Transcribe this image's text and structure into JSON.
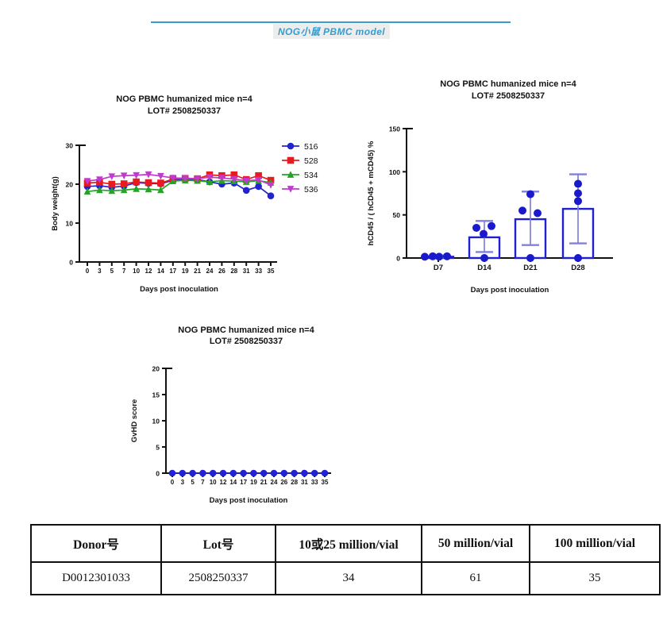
{
  "header": {
    "title": "NOG小鼠  PBMC model",
    "accent_color": "#3a9bca"
  },
  "chart_data": [
    {
      "id": "bodyweight",
      "type": "line",
      "title": "NOG PBMC humanized mice n=4",
      "subtitle": "LOT# 2508250337",
      "xlabel": "Days post inoculation",
      "ylabel": "Body weight(g)",
      "x_ticks": [
        "0",
        "3",
        "5",
        "7",
        "10",
        "12",
        "14",
        "17",
        "19",
        "21",
        "24",
        "26",
        "28",
        "31",
        "33",
        "35"
      ],
      "y_ticks": [
        0,
        10,
        20,
        30
      ],
      "ylim": [
        0,
        30
      ],
      "grid": false,
      "legend_position": "right",
      "series": [
        {
          "name": "516",
          "color": "#2222cf",
          "marker": "circle",
          "values": [
            19.4,
            19.6,
            19.2,
            19.5,
            20.4,
            20.2,
            20.1,
            21.0,
            21.3,
            21.2,
            20.6,
            20.0,
            20.3,
            18.4,
            19.4,
            17.0
          ]
        },
        {
          "name": "528",
          "color": "#e81a1f",
          "marker": "square",
          "values": [
            20.3,
            20.5,
            20.0,
            20.1,
            20.6,
            20.4,
            20.3,
            21.3,
            21.5,
            21.4,
            22.4,
            22.2,
            22.4,
            21.2,
            22.2,
            21.0
          ]
        },
        {
          "name": "534",
          "color": "#24a324",
          "marker": "triangle-up",
          "values": [
            18.1,
            18.5,
            18.3,
            18.5,
            18.8,
            18.7,
            18.5,
            20.8,
            21.0,
            20.9,
            20.6,
            20.9,
            20.8,
            20.6,
            20.9,
            20.4
          ]
        },
        {
          "name": "536",
          "color": "#bf3bce",
          "marker": "triangle-down",
          "values": [
            20.8,
            21.2,
            22.0,
            22.2,
            22.3,
            22.5,
            22.1,
            21.6,
            21.5,
            21.4,
            21.8,
            21.6,
            21.3,
            20.9,
            21.1,
            19.8
          ]
        }
      ]
    },
    {
      "id": "engraftment",
      "type": "bar",
      "title": "NOG PBMC humanized mice n=4",
      "subtitle": "LOT# 2508250337",
      "xlabel": "Days post inoculation",
      "ylabel": "hCD45 / ( hCD45 + mCD45) %",
      "categories": [
        "D7",
        "D14",
        "D21",
        "D28"
      ],
      "values": [
        1.5,
        24,
        45,
        57
      ],
      "error_low": [
        0.5,
        7,
        15,
        17
      ],
      "error_high": [
        3,
        43,
        77,
        97
      ],
      "points": [
        [
          1.5,
          2,
          1.5,
          2
        ],
        [
          35,
          37,
          28,
          0
        ],
        [
          74,
          55,
          52,
          0
        ],
        [
          86,
          75,
          66,
          0
        ]
      ],
      "point_jitter": [
        [
          -17,
          -7,
          1,
          11
        ],
        [
          -10,
          9,
          -1,
          0
        ],
        [
          0,
          -10,
          9,
          0
        ],
        [
          0,
          0,
          0,
          0
        ]
      ],
      "y_ticks": [
        0,
        50,
        100,
        150
      ],
      "ylim": [
        0,
        150
      ],
      "grid": false,
      "bar_fill": "#ffffff",
      "bar_stroke": "#2020cc",
      "error_color": "#8080dd",
      "point_color": "#1a1acc"
    },
    {
      "id": "gvhd",
      "type": "line",
      "title": "NOG PBMC humanized mice n=4",
      "subtitle": "LOT# 2508250337",
      "xlabel": "Days post inoculation",
      "ylabel": "GvHD score",
      "x_ticks": [
        "0",
        "3",
        "5",
        "7",
        "10",
        "12",
        "14",
        "17",
        "19",
        "21",
        "24",
        "26",
        "28",
        "31",
        "33",
        "35"
      ],
      "y_ticks": [
        0,
        5,
        10,
        15,
        20
      ],
      "ylim": [
        0,
        20
      ],
      "grid": false,
      "legend_position": "none",
      "series": [
        {
          "name": "GvHD",
          "color": "#2121d6",
          "marker": "circle",
          "values": [
            0,
            0,
            0,
            0,
            0,
            0,
            0,
            0,
            0,
            0,
            0,
            0,
            0,
            0,
            0,
            0
          ]
        }
      ]
    }
  ],
  "table": {
    "headers": [
      "Donor号",
      "Lot号",
      "10或25 million/vial",
      "50 million/vial",
      "100 million/vial"
    ],
    "rows": [
      [
        "D0012301033",
        "2508250337",
        "34",
        "61",
        "35"
      ]
    ]
  }
}
